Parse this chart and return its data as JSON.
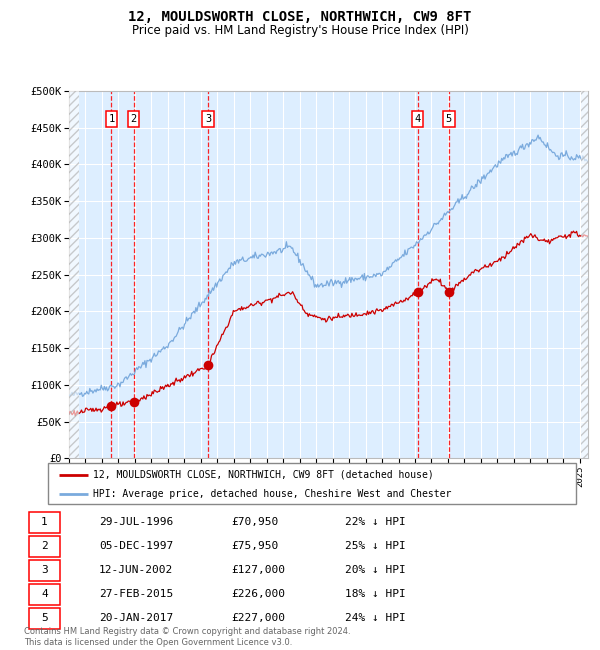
{
  "title": "12, MOULDSWORTH CLOSE, NORTHWICH, CW9 8FT",
  "subtitle": "Price paid vs. HM Land Registry's House Price Index (HPI)",
  "ylabel_ticks": [
    "£0",
    "£50K",
    "£100K",
    "£150K",
    "£200K",
    "£250K",
    "£300K",
    "£350K",
    "£400K",
    "£450K",
    "£500K"
  ],
  "ytick_values": [
    0,
    50000,
    100000,
    150000,
    200000,
    250000,
    300000,
    350000,
    400000,
    450000,
    500000
  ],
  "ylim": [
    0,
    500000
  ],
  "xlim_start": 1994.0,
  "xlim_end": 2025.5,
  "hpi_color": "#7aaadd",
  "price_color": "#cc0000",
  "background_color": "#ddeeff",
  "grid_color": "#ffffff",
  "sale_dates_decimal": [
    1996.57,
    1997.92,
    2002.45,
    2015.16,
    2017.05
  ],
  "sale_prices": [
    70950,
    75950,
    127000,
    226000,
    227000
  ],
  "sale_labels": [
    "1",
    "2",
    "3",
    "4",
    "5"
  ],
  "legend_price_label": "12, MOULDSWORTH CLOSE, NORTHWICH, CW9 8FT (detached house)",
  "legend_hpi_label": "HPI: Average price, detached house, Cheshire West and Chester",
  "table_rows": [
    [
      "1",
      "29-JUL-1996",
      "£70,950",
      "22% ↓ HPI"
    ],
    [
      "2",
      "05-DEC-1997",
      "£75,950",
      "25% ↓ HPI"
    ],
    [
      "3",
      "12-JUN-2002",
      "£127,000",
      "20% ↓ HPI"
    ],
    [
      "4",
      "27-FEB-2015",
      "£226,000",
      "18% ↓ HPI"
    ],
    [
      "5",
      "20-JAN-2017",
      "£227,000",
      "24% ↓ HPI"
    ]
  ],
  "footnote": "Contains HM Land Registry data © Crown copyright and database right 2024.\nThis data is licensed under the Open Government Licence v3.0.",
  "title_fontsize": 10,
  "subtitle_fontsize": 8.5
}
